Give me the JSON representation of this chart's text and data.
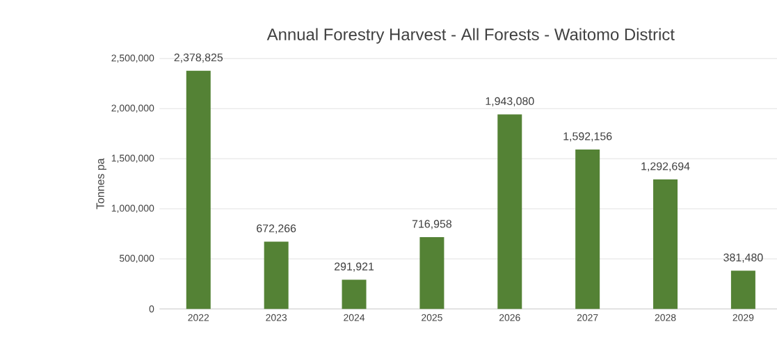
{
  "chart_data": {
    "type": "bar",
    "title": "Annual Forestry Harvest - All Forests - Waitomo District",
    "ylabel": "Tonnes pa",
    "categories": [
      "2022",
      "2023",
      "2024",
      "2025",
      "2026",
      "2027",
      "2028",
      "2029"
    ],
    "values": [
      2378825,
      672266,
      291921,
      716958,
      1943080,
      1592156,
      1292694,
      381480
    ],
    "value_labels": [
      "2,378,825",
      "672,266",
      "291,921",
      "716,958",
      "1,943,080",
      "1,592,156",
      "1,292,694",
      "381,480"
    ],
    "color": "#548235",
    "ylim": [
      0,
      2500000
    ],
    "yticks": [
      0,
      {
        "value": 500000,
        "label": "500,000"
      },
      {
        "value": 1000000,
        "label": "1,000,000"
      },
      {
        "value": 1500000,
        "label": "1,500,000"
      },
      {
        "value": 2000000,
        "label": "2,000,000"
      },
      {
        "value": 2500000,
        "label": "2,500,000"
      }
    ],
    "grid": "y"
  }
}
